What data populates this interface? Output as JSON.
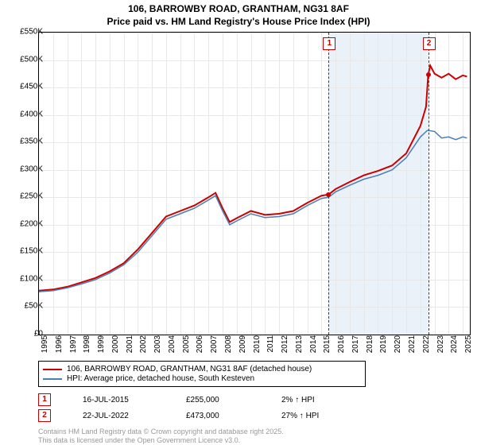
{
  "title_line1": "106, BARROWBY ROAD, GRANTHAM, NG31 8AF",
  "title_line2": "Price paid vs. HM Land Registry's House Price Index (HPI)",
  "chart": {
    "type": "line",
    "xlim": [
      1995,
      2025.5
    ],
    "ylim": [
      0,
      550000
    ],
    "ytick_step": 50000,
    "xtick_step": 1,
    "yticks_labels": [
      "£0",
      "£50K",
      "£100K",
      "£150K",
      "£200K",
      "£250K",
      "£300K",
      "£350K",
      "£400K",
      "£450K",
      "£500K",
      "£550K"
    ],
    "xticks_labels": [
      "1995",
      "1996",
      "1997",
      "1998",
      "1999",
      "2000",
      "2001",
      "2002",
      "2003",
      "2004",
      "2005",
      "2006",
      "2007",
      "2008",
      "2009",
      "2010",
      "2011",
      "2012",
      "2013",
      "2014",
      "2015",
      "2016",
      "2017",
      "2018",
      "2019",
      "2020",
      "2021",
      "2022",
      "2023",
      "2024",
      "2025"
    ],
    "grid_color": "#e8e8e8",
    "background_color": "#ffffff",
    "shaded_band": {
      "x_from": 2015.5,
      "x_to": 2022.55,
      "color": "#eaf1f9"
    },
    "series": [
      {
        "name": "106, BARROWBY ROAD, GRANTHAM, NG31 8AF (detached house)",
        "color": "#cc0000",
        "width": 2,
        "data": [
          [
            1995,
            80000
          ],
          [
            1996,
            82000
          ],
          [
            1997,
            87000
          ],
          [
            1998,
            95000
          ],
          [
            1999,
            103000
          ],
          [
            2000,
            115000
          ],
          [
            2001,
            130000
          ],
          [
            2002,
            155000
          ],
          [
            2003,
            185000
          ],
          [
            2004,
            215000
          ],
          [
            2005,
            225000
          ],
          [
            2006,
            235000
          ],
          [
            2007,
            250000
          ],
          [
            2007.5,
            258000
          ],
          [
            2008,
            230000
          ],
          [
            2008.5,
            205000
          ],
          [
            2009,
            212000
          ],
          [
            2010,
            225000
          ],
          [
            2011,
            218000
          ],
          [
            2012,
            220000
          ],
          [
            2013,
            225000
          ],
          [
            2014,
            240000
          ],
          [
            2015,
            253000
          ],
          [
            2015.5,
            255000
          ],
          [
            2016,
            265000
          ],
          [
            2017,
            278000
          ],
          [
            2018,
            290000
          ],
          [
            2019,
            298000
          ],
          [
            2020,
            308000
          ],
          [
            2021,
            330000
          ],
          [
            2022,
            380000
          ],
          [
            2022.4,
            415000
          ],
          [
            2022.55,
            473000
          ],
          [
            2022.7,
            490000
          ],
          [
            2023,
            475000
          ],
          [
            2023.5,
            468000
          ],
          [
            2024,
            475000
          ],
          [
            2024.5,
            465000
          ],
          [
            2025,
            472000
          ],
          [
            2025.3,
            470000
          ]
        ]
      },
      {
        "name": "HPI: Average price, detached house, South Kesteven",
        "color": "#4a7fb5",
        "width": 1.5,
        "data": [
          [
            1995,
            78000
          ],
          [
            1996,
            80000
          ],
          [
            1997,
            85000
          ],
          [
            1998,
            92000
          ],
          [
            1999,
            100000
          ],
          [
            2000,
            112000
          ],
          [
            2001,
            127000
          ],
          [
            2002,
            150000
          ],
          [
            2003,
            180000
          ],
          [
            2004,
            210000
          ],
          [
            2005,
            220000
          ],
          [
            2006,
            230000
          ],
          [
            2007,
            245000
          ],
          [
            2007.5,
            253000
          ],
          [
            2008,
            225000
          ],
          [
            2008.5,
            200000
          ],
          [
            2009,
            207000
          ],
          [
            2010,
            220000
          ],
          [
            2011,
            213000
          ],
          [
            2012,
            215000
          ],
          [
            2013,
            220000
          ],
          [
            2014,
            235000
          ],
          [
            2015,
            248000
          ],
          [
            2015.5,
            250000
          ],
          [
            2016,
            260000
          ],
          [
            2017,
            272000
          ],
          [
            2018,
            283000
          ],
          [
            2019,
            290000
          ],
          [
            2020,
            300000
          ],
          [
            2021,
            322000
          ],
          [
            2022,
            360000
          ],
          [
            2022.5,
            372000
          ],
          [
            2023,
            370000
          ],
          [
            2023.5,
            358000
          ],
          [
            2024,
            360000
          ],
          [
            2024.5,
            355000
          ],
          [
            2025,
            360000
          ],
          [
            2025.3,
            358000
          ]
        ]
      }
    ],
    "markers": [
      {
        "label": "1",
        "x": 2015.5,
        "price": 255000,
        "date": "16-JUL-2015",
        "price_label": "£255,000",
        "delta": "2% ↑ HPI"
      },
      {
        "label": "2",
        "x": 2022.55,
        "price": 473000,
        "date": "22-JUL-2022",
        "price_label": "£473,000",
        "delta": "27% ↑ HPI"
      }
    ]
  },
  "legend": {
    "items": [
      {
        "color": "#cc0000",
        "label": "106, BARROWBY ROAD, GRANTHAM, NG31 8AF (detached house)"
      },
      {
        "color": "#4a7fb5",
        "label": "HPI: Average price, detached house, South Kesteven"
      }
    ]
  },
  "footer_line1": "Contains HM Land Registry data © Crown copyright and database right 2025.",
  "footer_line2": "This data is licensed under the Open Government Licence v3.0."
}
